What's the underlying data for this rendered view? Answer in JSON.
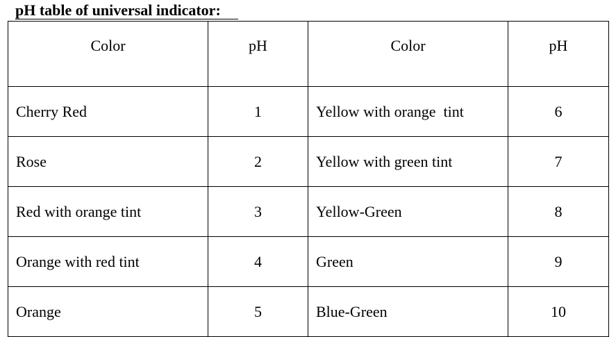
{
  "title": "pH table of universal indicator:",
  "table": {
    "headers": [
      "Color",
      "pH",
      "Color",
      "pH"
    ],
    "rows": [
      [
        "Cherry Red",
        "1",
        "Yellow with orange  tint",
        "6"
      ],
      [
        "Rose",
        "2",
        "Yellow with green tint",
        "7"
      ],
      [
        "Red with orange tint",
        "3",
        "Yellow-Green",
        "8"
      ],
      [
        "Orange with red tint",
        "4",
        "Green",
        "9"
      ],
      [
        "Orange",
        "5",
        "Blue-Green",
        "10"
      ]
    ]
  }
}
